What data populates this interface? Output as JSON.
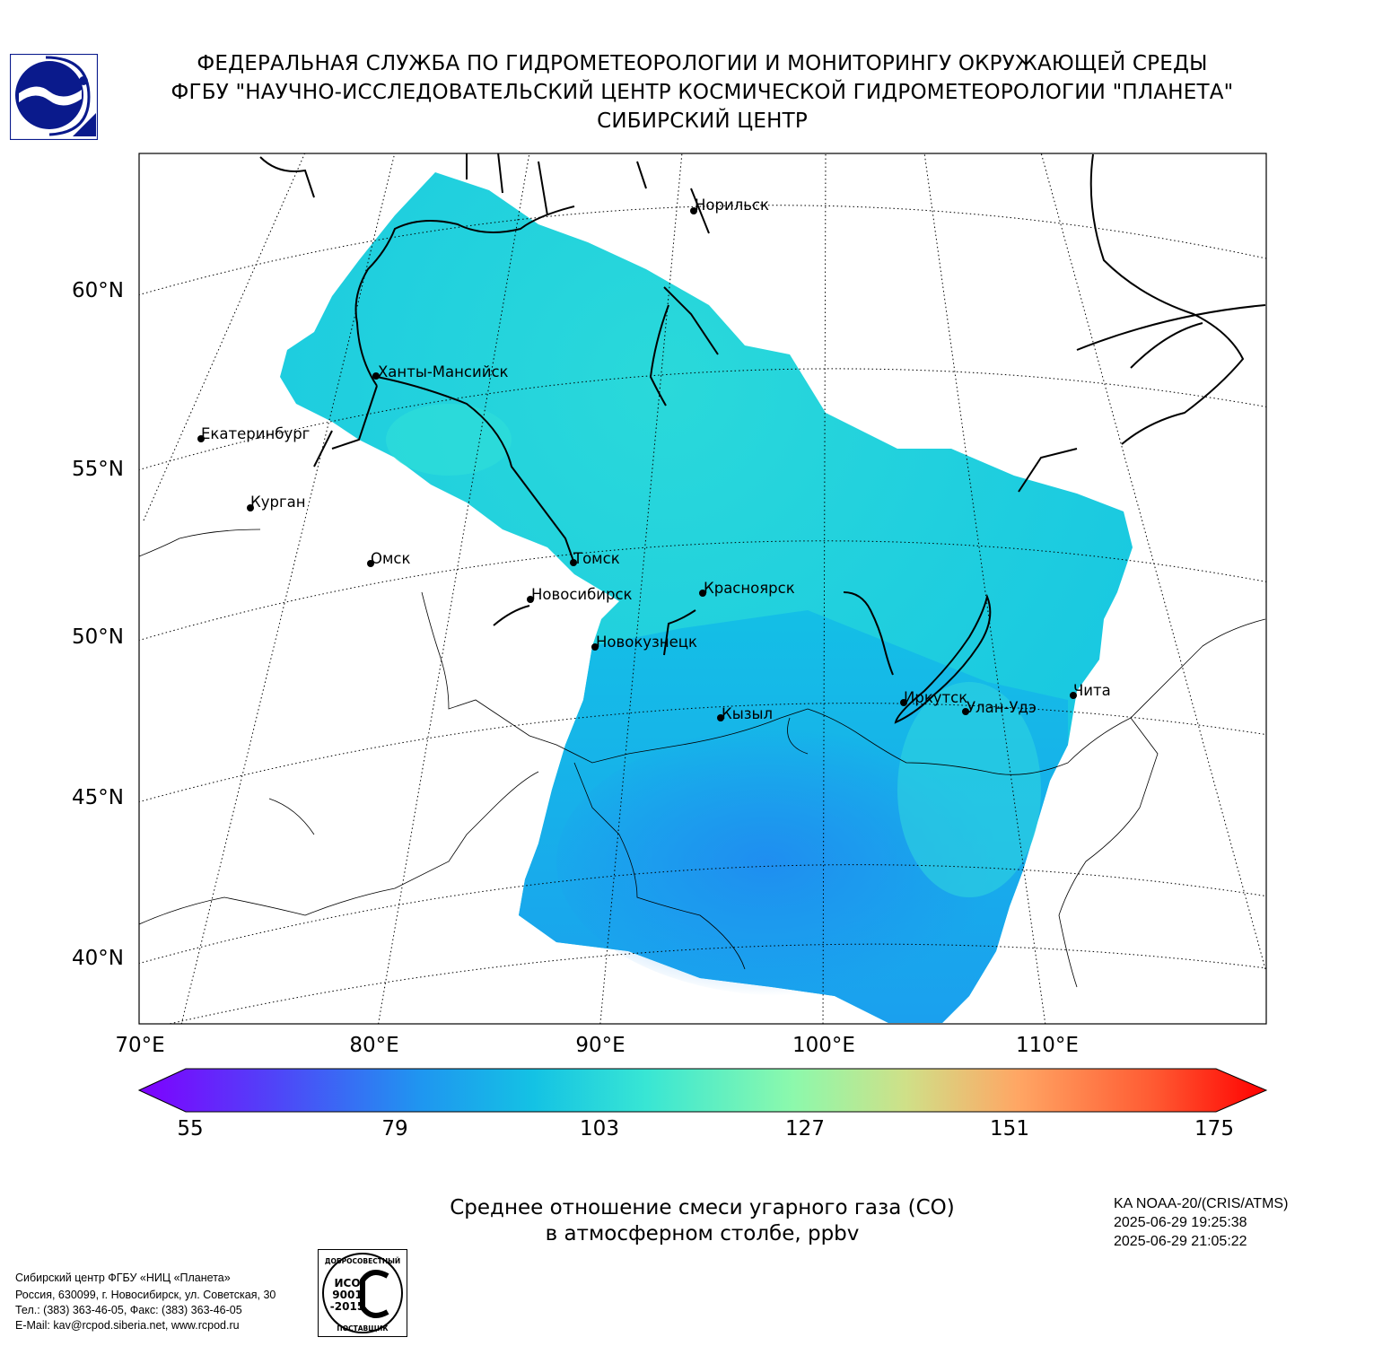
{
  "header": {
    "line1": "ФЕДЕРАЛЬНАЯ СЛУЖБА ПО ГИДРОМЕТЕОРОЛОГИИ И МОНИТОРИНГУ ОКРУЖАЮЩЕЙ СРЕДЫ",
    "line2": "ФГБУ \"НАУЧНО-ИССЛЕДОВАТЕЛЬСКИЙ ЦЕНТР КОСМИЧЕСКОЙ ГИДРОМЕТЕОРОЛОГИИ \"ПЛАНЕТА\"",
    "line3": "СИБИРСКИЙ ЦЕНТР"
  },
  "map": {
    "lat_labels": [
      "60°N",
      "55°N",
      "50°N",
      "45°N",
      "40°N"
    ],
    "lon_labels": [
      "70°E",
      "80°E",
      "90°E",
      "100°E",
      "110°E"
    ],
    "cities": [
      {
        "name": "Норильск"
      },
      {
        "name": "Ханты-Мансийск"
      },
      {
        "name": "Екатеринбург"
      },
      {
        "name": "Курган"
      },
      {
        "name": "Омск"
      },
      {
        "name": "Томск"
      },
      {
        "name": "Новосибирск"
      },
      {
        "name": "Красноярск"
      },
      {
        "name": "Новокузнецк"
      },
      {
        "name": "Иркутск"
      },
      {
        "name": "Улан-Удэ"
      },
      {
        "name": "Чита"
      },
      {
        "name": "Кызыл"
      }
    ],
    "fill_color": "#16c6e0"
  },
  "colorbar": {
    "ticks": [
      "55",
      "79",
      "103",
      "127",
      "151",
      "175"
    ],
    "min": 55,
    "max": 175
  },
  "title": {
    "line1": "Среднее отношение смеси угарного газа (CO)",
    "line2": "в атмосферном столбе, ppbv"
  },
  "satellite": {
    "name": "KA NOAA-20/(CRIS/ATMS)",
    "time_start": "2025-06-29 19:25:38",
    "time_end": "2025-06-29 21:05:22"
  },
  "footer": {
    "line1": "Сибирский центр ФГБУ «НИЦ «Планета»",
    "line2": "Россия, 630099, г. Новосибирск, ул. Советская, 30",
    "line3": "Тел.: (383) 363-46-05, Факс: (383) 363-46-05",
    "line4": "E-Mail: kav@rcpod.siberia.net, www.rcpod.ru"
  },
  "iso_badge": {
    "top": "ДОБРОСОВЕСТНЫЙ",
    "code": "ИСО",
    "num": "9001",
    "year": "-2015",
    "bottom": "ПОСТАВЩИК"
  }
}
